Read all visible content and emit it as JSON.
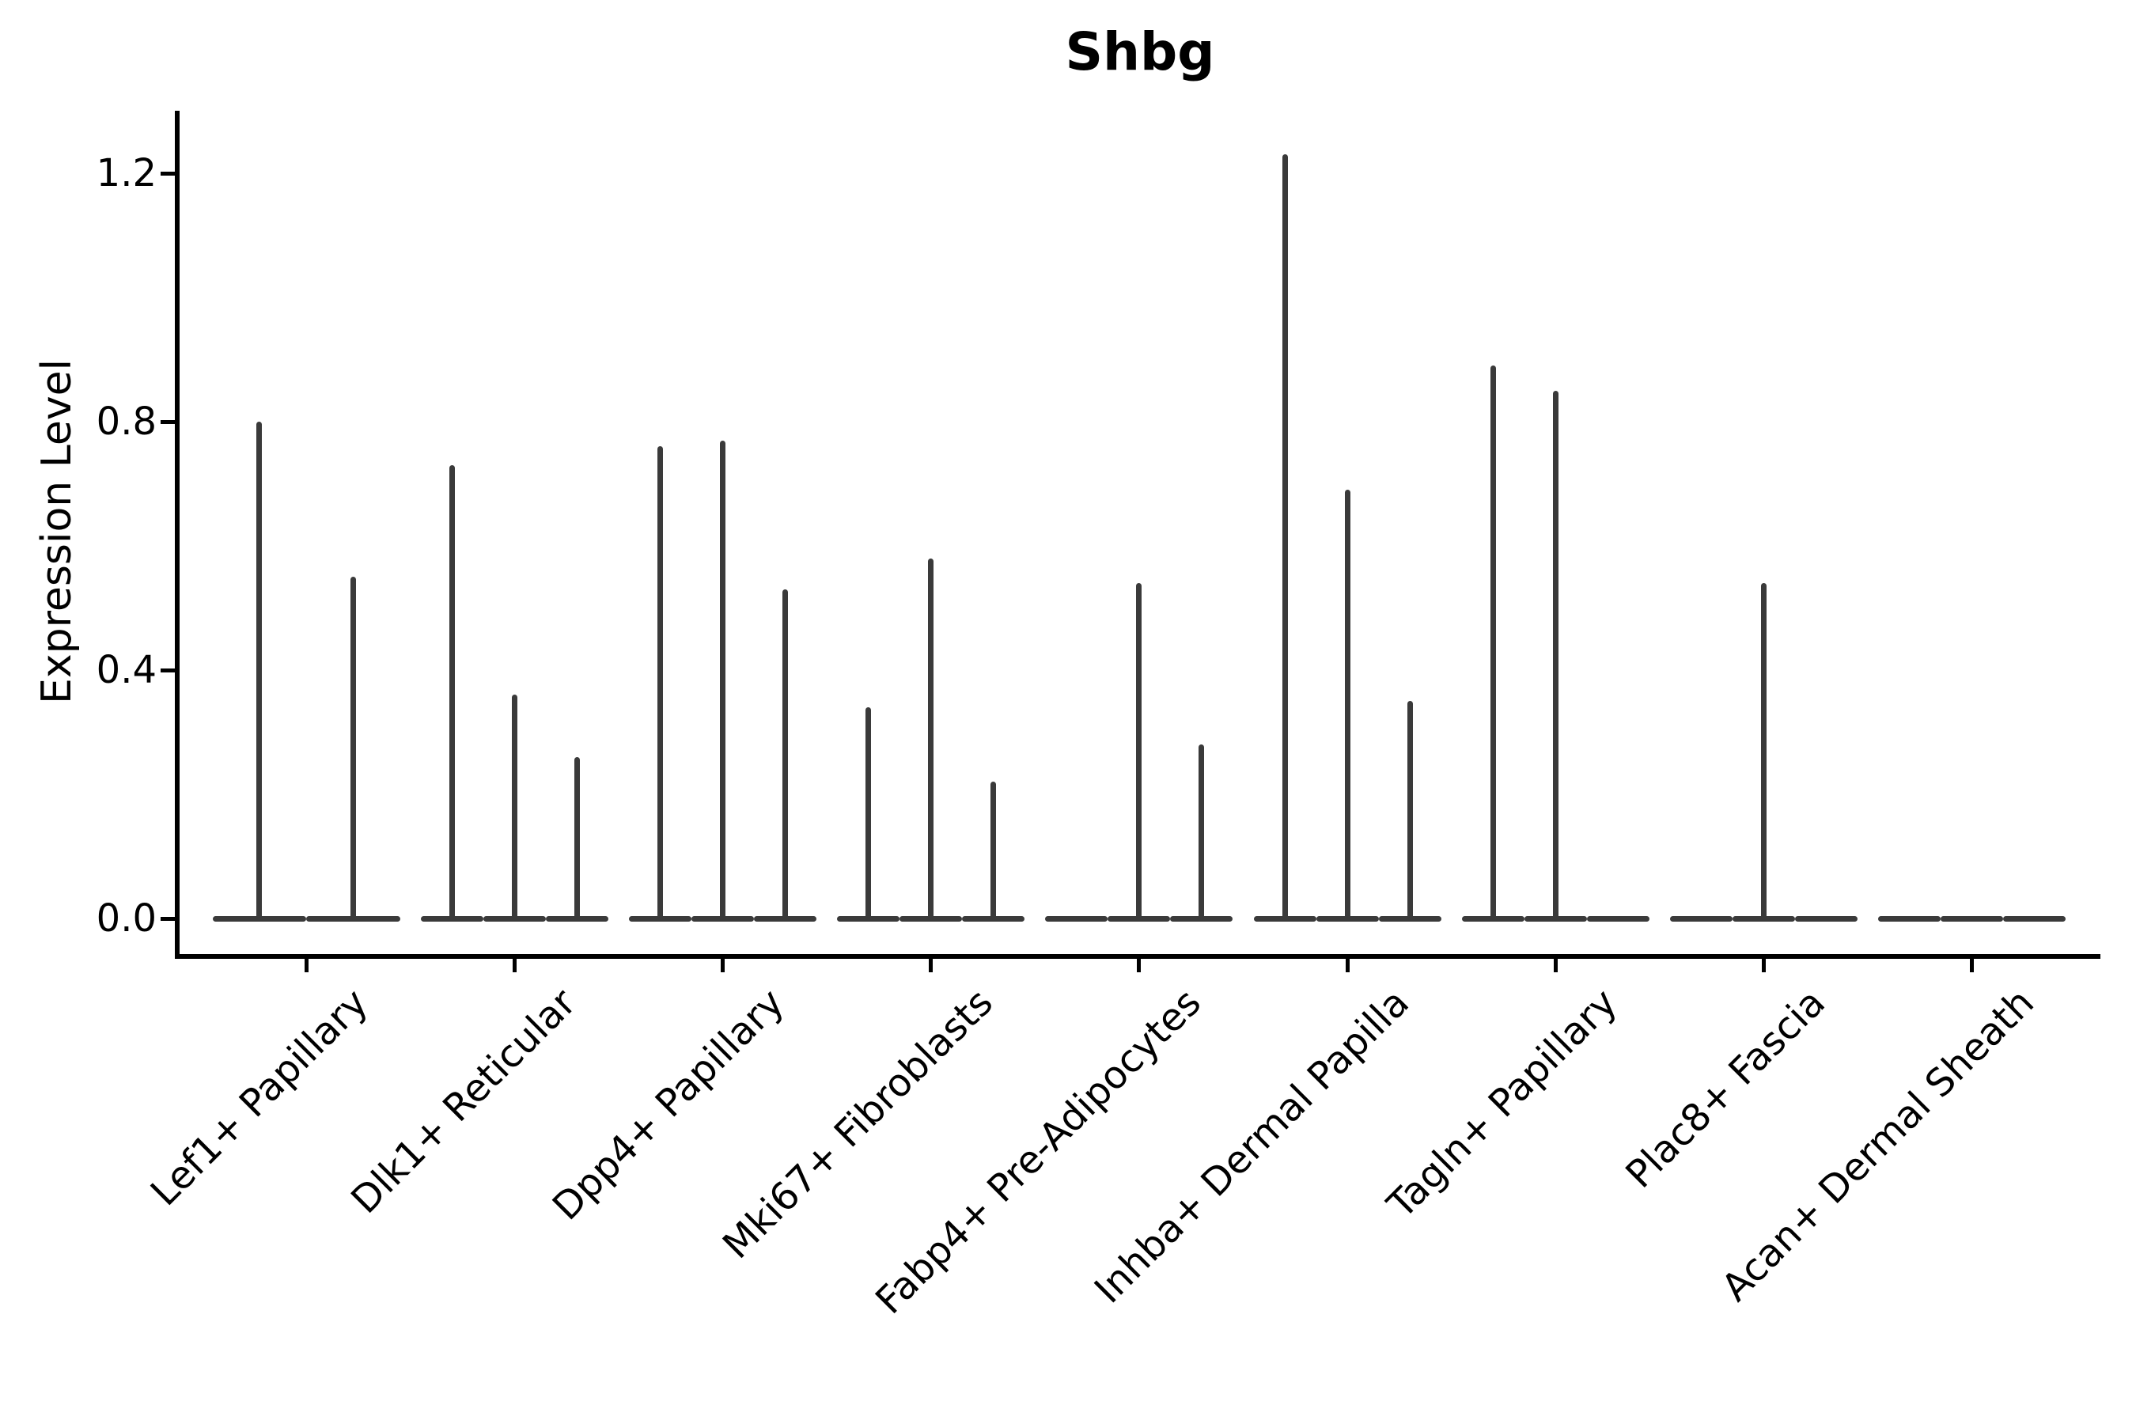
{
  "style": {
    "background": "#ffffff",
    "violin_color": "#3a3a3a",
    "axis_color": "#000000",
    "text_color": "#000000"
  },
  "chart_data": {
    "type": "violin",
    "title": "Shbg",
    "xlabel": "",
    "ylabel": "Expression Level",
    "grid": false,
    "legend": null,
    "y_ticks": [
      "0.0",
      "0.4",
      "0.8",
      "1.2"
    ],
    "y_tick_values": [
      0.0,
      0.4,
      0.8,
      1.2
    ],
    "ylim": [
      -0.06,
      1.3
    ],
    "categories": [
      "Lef1+ Papillary",
      "Dlk1+ Reticular",
      "Dpp4+ Papillary",
      "Mki67+ Fibroblasts",
      "Fabp4+ Pre-Adipocytes",
      "Inhba+ Dermal Papilla",
      "Tagln+ Papillary",
      "Plac8+ Fascia",
      "Acan+ Dermal Sheath"
    ],
    "groups": [
      {
        "category": "Lef1+ Papillary",
        "violin_peaks": [
          0.8,
          0.55
        ]
      },
      {
        "category": "Dlk1+ Reticular",
        "violin_peaks": [
          0.73,
          0.36,
          0.26
        ]
      },
      {
        "category": "Dpp4+ Papillary",
        "violin_peaks": [
          0.76,
          0.77,
          0.53
        ]
      },
      {
        "category": "Mki67+ Fibroblasts",
        "violin_peaks": [
          0.34,
          0.58,
          0.22
        ]
      },
      {
        "category": "Fabp4+ Pre-Adipocytes",
        "violin_peaks": [
          null,
          0.54,
          0.28
        ]
      },
      {
        "category": "Inhba+ Dermal Papilla",
        "violin_peaks": [
          1.23,
          0.69,
          0.35
        ]
      },
      {
        "category": "Tagln+ Papillary",
        "violin_peaks": [
          0.89,
          0.85,
          null
        ]
      },
      {
        "category": "Plac8+ Fascia",
        "violin_peaks": [
          null,
          0.54,
          null
        ]
      },
      {
        "category": "Acan+ Dermal Sheath",
        "violin_peaks": [
          null,
          null,
          null
        ]
      }
    ]
  }
}
